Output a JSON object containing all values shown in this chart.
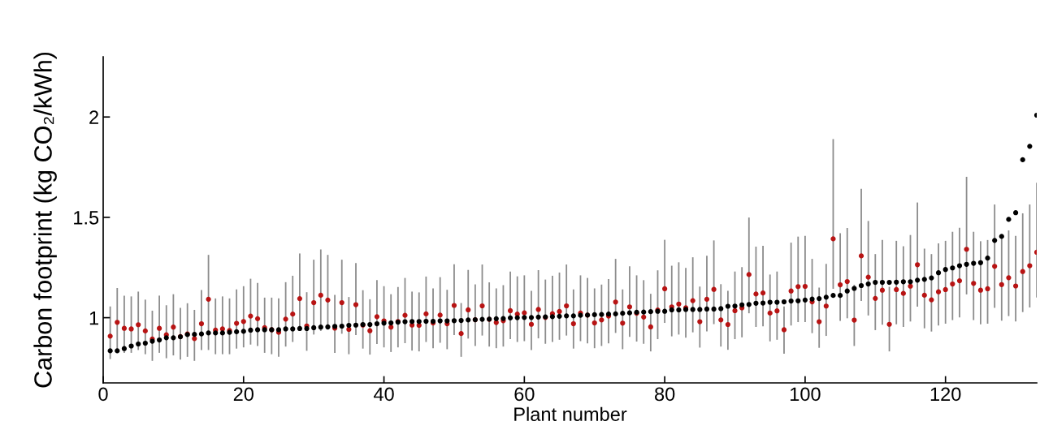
{
  "chart_data": {
    "type": "scatter",
    "xlabel": "Plant number",
    "ylabel": "Carbon footprint (kg CO₂/kWh)",
    "xlim": [
      0,
      133
    ],
    "ylim": [
      0.675,
      2.3
    ],
    "xticks": [
      0,
      20,
      40,
      60,
      80,
      100,
      120
    ],
    "yticks": [
      1,
      1.5,
      2
    ],
    "marker": "circle",
    "x": [
      1,
      2,
      3,
      4,
      5,
      6,
      7,
      8,
      9,
      10,
      11,
      12,
      13,
      14,
      15,
      16,
      17,
      18,
      19,
      20,
      21,
      22,
      23,
      24,
      25,
      26,
      27,
      28,
      29,
      30,
      31,
      32,
      33,
      34,
      35,
      36,
      37,
      38,
      39,
      40,
      41,
      42,
      43,
      44,
      45,
      46,
      47,
      48,
      49,
      50,
      51,
      52,
      53,
      54,
      55,
      56,
      57,
      58,
      59,
      60,
      61,
      62,
      63,
      64,
      65,
      66,
      67,
      68,
      69,
      70,
      71,
      72,
      73,
      74,
      75,
      76,
      77,
      78,
      79,
      80,
      81,
      82,
      83,
      84,
      85,
      86,
      87,
      88,
      89,
      90,
      91,
      92,
      93,
      94,
      95,
      96,
      97,
      98,
      99,
      100,
      101,
      102,
      103,
      104,
      105,
      106,
      107,
      108,
      109,
      110,
      111,
      112,
      113,
      114,
      115,
      116,
      117,
      118,
      119,
      120,
      121,
      122,
      123,
      124,
      125,
      126,
      127,
      128,
      129,
      130,
      131,
      132,
      133
    ],
    "series": [
      {
        "color": "#b81414",
        "values": [
          0.908,
          0.977,
          0.947,
          0.944,
          0.965,
          0.934,
          0.894,
          0.947,
          0.915,
          0.953,
          0.906,
          0.919,
          0.896,
          0.97,
          1.092,
          0.938,
          0.944,
          0.936,
          0.972,
          0.981,
          1.008,
          0.995,
          0.95,
          0.94,
          0.927,
          0.993,
          1.018,
          1.095,
          0.959,
          1.075,
          1.112,
          1.088,
          0.948,
          1.075,
          0.942,
          1.065,
          0.963,
          0.935,
          1.005,
          0.984,
          0.953,
          0.981,
          1.012,
          0.963,
          0.962,
          1.019,
          0.974,
          1.013,
          0.97,
          1.061,
          0.921,
          1.039,
          0.99,
          1.059,
          0.992,
          0.976,
          0.985,
          1.035,
          1.018,
          1.024,
          0.967,
          1.041,
          1.001,
          1.02,
          1.031,
          1.059,
          0.97,
          1.023,
          1.013,
          0.974,
          0.989,
          1.008,
          1.078,
          0.973,
          1.054,
          1.022,
          1.003,
          0.954,
          1.038,
          1.144,
          1.054,
          1.068,
          1.049,
          1.085,
          0.98,
          1.092,
          1.141,
          0.989,
          0.966,
          1.035,
          1.049,
          1.215,
          1.118,
          1.123,
          1.023,
          1.034,
          0.94,
          1.133,
          1.155,
          1.156,
          1.079,
          0.98,
          1.058,
          1.393,
          1.164,
          1.18,
          0.988,
          1.308,
          1.202,
          1.096,
          1.137,
          0.967,
          1.14,
          1.121,
          1.157,
          1.264,
          1.112,
          1.089,
          1.129,
          1.14,
          1.168,
          1.184,
          1.341,
          1.171,
          1.137,
          1.144,
          1.256,
          1.165,
          1.199,
          1.158,
          1.23,
          1.259,
          1.326
        ],
        "errors": [
          [
            0.794,
            1.056
          ],
          [
            0.832,
            1.148
          ],
          [
            0.825,
            1.11
          ],
          [
            0.825,
            1.106
          ],
          [
            0.839,
            1.13
          ],
          [
            0.818,
            1.09
          ],
          [
            0.785,
            1.035
          ],
          [
            0.825,
            1.11
          ],
          [
            0.798,
            1.062
          ],
          [
            0.812,
            1.117
          ],
          [
            0.791,
            1.049
          ],
          [
            0.805,
            1.072
          ],
          [
            0.785,
            1.039
          ],
          [
            0.839,
            1.138
          ],
          [
            0.839,
            1.313
          ],
          [
            0.818,
            1.096
          ],
          [
            0.818,
            1.106
          ],
          [
            0.818,
            1.096
          ],
          [
            0.846,
            1.141
          ],
          [
            0.852,
            1.157
          ],
          [
            0.866,
            1.194
          ],
          [
            0.859,
            1.173
          ],
          [
            0.825,
            1.1
          ],
          [
            0.818,
            1.1
          ],
          [
            0.805,
            1.096
          ],
          [
            0.856,
            1.177
          ],
          [
            0.879,
            1.209
          ],
          [
            0.947,
            1.32
          ],
          [
            0.835,
            1.127
          ],
          [
            0.916,
            1.289
          ],
          [
            0.934,
            1.34
          ],
          [
            0.94,
            1.313
          ],
          [
            0.825,
            1.114
          ],
          [
            0.92,
            1.289
          ],
          [
            0.818,
            1.103
          ],
          [
            0.913,
            1.272
          ],
          [
            0.846,
            1.137
          ],
          [
            0.816,
            1.092
          ],
          [
            0.869,
            1.187
          ],
          [
            0.852,
            1.157
          ],
          [
            0.829,
            1.117
          ],
          [
            0.852,
            1.153
          ],
          [
            0.873,
            1.198
          ],
          [
            0.836,
            1.13
          ],
          [
            0.832,
            1.126
          ],
          [
            0.879,
            1.205
          ],
          [
            0.848,
            1.146
          ],
          [
            0.875,
            1.202
          ],
          [
            0.843,
            1.139
          ],
          [
            0.913,
            1.266
          ],
          [
            0.805,
            1.073
          ],
          [
            0.896,
            1.238
          ],
          [
            0.859,
            1.166
          ],
          [
            0.911,
            1.265
          ],
          [
            0.856,
            1.176
          ],
          [
            0.848,
            1.146
          ],
          [
            0.856,
            1.162
          ],
          [
            0.893,
            1.23
          ],
          [
            0.879,
            1.206
          ],
          [
            0.883,
            1.211
          ],
          [
            0.839,
            1.134
          ],
          [
            0.897,
            1.237
          ],
          [
            0.87,
            1.19
          ],
          [
            0.879,
            1.209
          ],
          [
            0.89,
            1.225
          ],
          [
            0.911,
            1.265
          ],
          [
            0.846,
            1.141
          ],
          [
            0.883,
            1.211
          ],
          [
            0.872,
            1.198
          ],
          [
            0.848,
            1.146
          ],
          [
            0.859,
            1.165
          ],
          [
            0.872,
            1.192
          ],
          [
            0.924,
            1.293
          ],
          [
            0.843,
            1.141
          ],
          [
            0.904,
            1.256
          ],
          [
            0.881,
            1.211
          ],
          [
            0.87,
            1.187
          ],
          [
            0.832,
            1.119
          ],
          [
            0.893,
            1.236
          ],
          [
            0.974,
            1.388
          ],
          [
            0.907,
            1.259
          ],
          [
            0.916,
            1.276
          ],
          [
            0.9,
            1.248
          ],
          [
            0.927,
            1.301
          ],
          [
            0.851,
            1.155
          ],
          [
            0.932,
            1.309
          ],
          [
            0.968,
            1.385
          ],
          [
            0.856,
            1.167
          ],
          [
            0.84,
            1.134
          ],
          [
            0.893,
            1.23
          ],
          [
            0.902,
            1.252
          ],
          [
            1.022,
            1.499
          ],
          [
            0.954,
            1.354
          ],
          [
            0.957,
            1.358
          ],
          [
            0.882,
            1.215
          ],
          [
            0.89,
            1.23
          ],
          [
            0.821,
            1.056
          ],
          [
            0.961,
            1.374
          ],
          [
            0.978,
            1.404
          ],
          [
            0.978,
            1.408
          ],
          [
            0.923,
            1.293
          ],
          [
            0.85,
            1.15
          ],
          [
            0.909,
            1.268
          ],
          [
            1.144,
            1.89
          ],
          [
            0.984,
            1.421
          ],
          [
            0.997,
            1.447
          ],
          [
            0.859,
            1.164
          ],
          [
            1.083,
            1.642
          ],
          [
            1.011,
            1.482
          ],
          [
            0.938,
            1.317
          ],
          [
            0.965,
            1.387
          ],
          [
            0.832,
            1.154
          ],
          [
            0.967,
            1.383
          ],
          [
            0.954,
            1.356
          ],
          [
            0.981,
            1.412
          ],
          [
            1.055,
            1.574
          ],
          [
            0.947,
            1.344
          ],
          [
            0.931,
            1.317
          ],
          [
            0.961,
            1.37
          ],
          [
            0.97,
            1.383
          ],
          [
            0.988,
            1.428
          ],
          [
            1.001,
            1.448
          ],
          [
            1.116,
            1.702
          ],
          [
            0.988,
            1.428
          ],
          [
            0.967,
            1.381
          ],
          [
            0.97,
            1.387
          ],
          [
            1.049,
            1.564
          ],
          [
            0.985,
            1.415
          ],
          [
            1.008,
            1.435
          ],
          [
            0.981,
            1.408
          ],
          [
            1.028,
            1.52
          ],
          [
            1.051,
            1.564
          ],
          [
            1.1,
            1.672
          ]
        ]
      },
      {
        "color": "#000000",
        "values": [
          0.835,
          0.835,
          0.846,
          0.859,
          0.869,
          0.873,
          0.883,
          0.889,
          0.9,
          0.9,
          0.905,
          0.916,
          0.917,
          0.919,
          0.924,
          0.924,
          0.924,
          0.927,
          0.93,
          0.932,
          0.938,
          0.94,
          0.94,
          0.94,
          0.94,
          0.944,
          0.944,
          0.946,
          0.946,
          0.95,
          0.953,
          0.954,
          0.957,
          0.958,
          0.962,
          0.963,
          0.966,
          0.966,
          0.97,
          0.973,
          0.974,
          0.978,
          0.98,
          0.981,
          0.981,
          0.982,
          0.982,
          0.984,
          0.984,
          0.985,
          0.986,
          0.989,
          0.99,
          0.992,
          0.993,
          0.995,
          0.996,
          0.999,
          1.0,
          1.001,
          1.001,
          1.003,
          1.004,
          1.005,
          1.007,
          1.009,
          1.009,
          1.012,
          1.013,
          1.015,
          1.016,
          1.018,
          1.019,
          1.022,
          1.024,
          1.027,
          1.028,
          1.03,
          1.032,
          1.032,
          1.039,
          1.039,
          1.041,
          1.041,
          1.041,
          1.043,
          1.043,
          1.045,
          1.057,
          1.058,
          1.064,
          1.066,
          1.072,
          1.073,
          1.077,
          1.077,
          1.079,
          1.083,
          1.084,
          1.088,
          1.093,
          1.095,
          1.102,
          1.111,
          1.111,
          1.133,
          1.146,
          1.16,
          1.168,
          1.176,
          1.176,
          1.176,
          1.177,
          1.179,
          1.179,
          1.187,
          1.191,
          1.198,
          1.224,
          1.24,
          1.248,
          1.259,
          1.266,
          1.271,
          1.274,
          1.297,
          1.385,
          1.405,
          1.49,
          1.523,
          1.787,
          1.854,
          2.009
        ]
      }
    ]
  }
}
